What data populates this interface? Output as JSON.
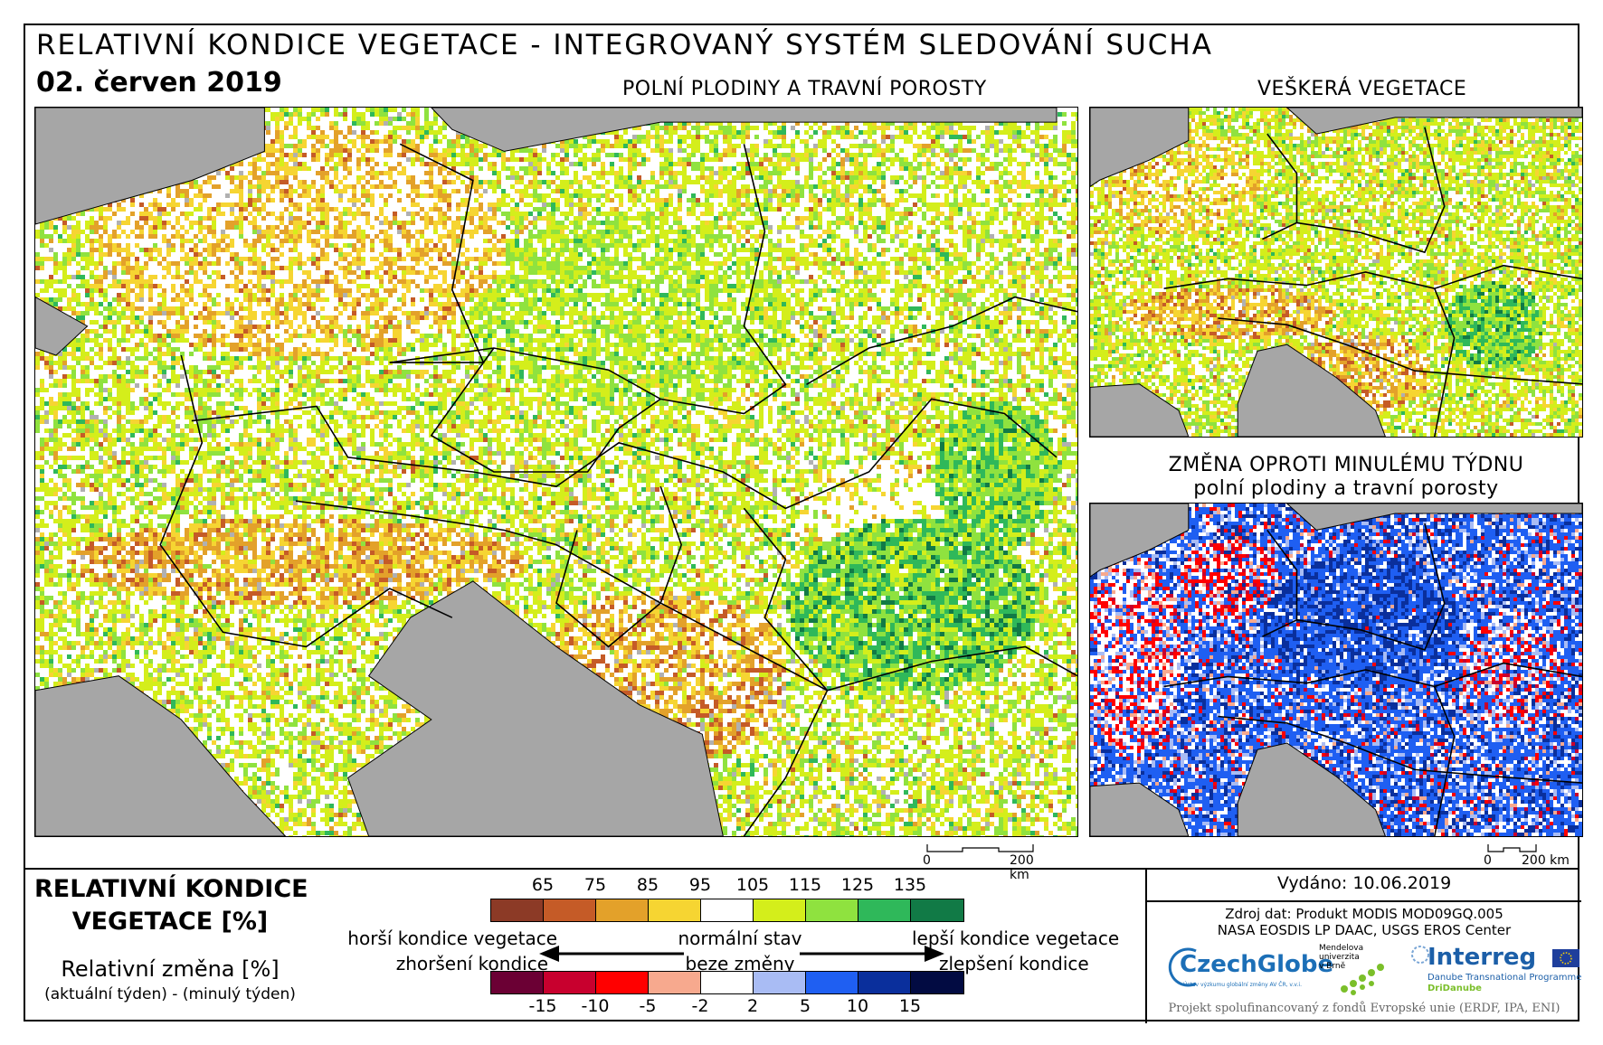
{
  "header": {
    "title": "RELATIVNÍ KONDICE VEGETACE - INTEGROVANÝ SYSTÉM SLEDOVÁNÍ SUCHA",
    "date": "02. červen 2019"
  },
  "panels": {
    "main": {
      "title": "POLNÍ PLODINY A TRAVNÍ POROSTY"
    },
    "all_vegetation": {
      "title": "VEŠKERÁ VEGETACE"
    },
    "weekly_change": {
      "title_line1": "ZMĚNA OPROTI MINULÉMU TÝDNU",
      "title_line2": "polní plodiny a travní porosty"
    }
  },
  "scale_bar": {
    "start": "0",
    "end": "200 km"
  },
  "legend": {
    "condition_title_line1": "RELATIVNÍ KONDICE",
    "condition_title_line2": "VEGETACE [%]",
    "change_title": "Relativní změna [%]",
    "change_note": "(aktuální týden) - (minulý týden)",
    "condition_ticks": [
      "65",
      "75",
      "85",
      "95",
      "105",
      "115",
      "125",
      "135"
    ],
    "condition_colors": [
      "#8c3a26",
      "#c55b27",
      "#e3a12a",
      "#f6d532",
      "#ffffff",
      "#d4ee1b",
      "#8fe23f",
      "#2fb85a",
      "#117a46"
    ],
    "change_ticks": [
      "-15",
      "-10",
      "-5",
      "-2",
      "2",
      "5",
      "10",
      "15"
    ],
    "change_colors": [
      "#6b0034",
      "#c8002e",
      "#ff0000",
      "#f7a98e",
      "#ffffff",
      "#a9bcf4",
      "#1f5ff2",
      "#0a2f9c",
      "#020b42"
    ],
    "worse_condition": "horší kondice vegetace",
    "worse_change": "zhoršení kondice",
    "normal": "normální stav",
    "no_change": "beze změny",
    "better_condition": "lepší kondice vegetace",
    "better_change": "zlepšení kondice"
  },
  "info": {
    "issued": "Vydáno: 10.06.2019",
    "source_line1": "Zdroj dat: Produkt MODIS MOD09GQ.005",
    "source_line2": "NASA EOSDIS LP DAAC, USGS EROS Center",
    "footer": "Projekt spolufinancovaný z fondů Evropské unie (ERDF, IPA, ENI)"
  },
  "logos": {
    "czechglobe": "CzechGlobe",
    "czechglobe_sub": "Ústav výzkumu globální změny AV ČR, v.v.i.",
    "mendel_line1": "Mendelova",
    "mendel_line2": "univerzita",
    "mendel_line3": "v Brně",
    "interreg": "Interreg",
    "interreg_sub": "Danube Transnational Programme",
    "interreg_project": "DriDanube"
  }
}
